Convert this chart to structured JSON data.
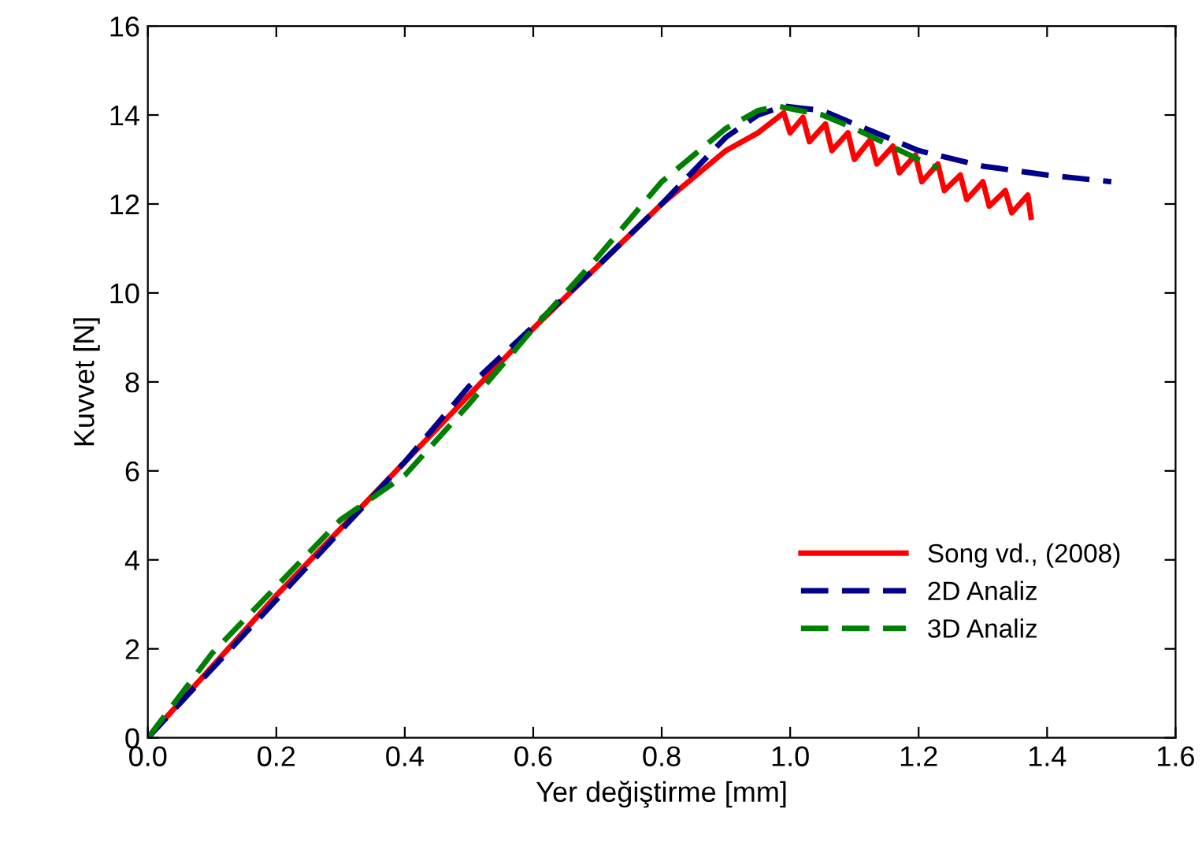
{
  "chart_data": {
    "type": "line",
    "xlabel": "Yer değiştirme [mm]",
    "ylabel": "Kuvvet [N]",
    "xlim": [
      0,
      1.6
    ],
    "ylim": [
      0,
      16
    ],
    "xticks": [
      {
        "value": 0,
        "label": "0.0"
      },
      {
        "value": 0.2,
        "label": "0.2"
      },
      {
        "value": 0.4,
        "label": "0.4"
      },
      {
        "value": 0.6,
        "label": "0.6"
      },
      {
        "value": 0.8,
        "label": "0.8"
      },
      {
        "value": 1.0,
        "label": "1.0"
      },
      {
        "value": 1.2,
        "label": "1.2"
      },
      {
        "value": 1.4,
        "label": "1.4"
      },
      {
        "value": 1.6,
        "label": "1.6"
      }
    ],
    "yticks": [
      0,
      2,
      4,
      6,
      8,
      10,
      12,
      14,
      16
    ],
    "grid": false,
    "legend": "bottom right",
    "marker": "none",
    "series": [
      {
        "name": "Song vd., (2008)",
        "color": "#ff0000",
        "line_style": "solid",
        "x": [
          0,
          0.2,
          0.4,
          0.6,
          0.8,
          0.9,
          0.95,
          0.99,
          1.0,
          1.02,
          1.03,
          1.055,
          1.065,
          1.09,
          1.1,
          1.125,
          1.135,
          1.16,
          1.17,
          1.195,
          1.205,
          1.23,
          1.24,
          1.265,
          1.275,
          1.3,
          1.31,
          1.335,
          1.345,
          1.37,
          1.375
        ],
        "values": [
          0,
          3.2,
          6.2,
          9.2,
          12.0,
          13.2,
          13.6,
          14.05,
          13.6,
          13.95,
          13.4,
          13.8,
          13.2,
          13.6,
          13.0,
          13.45,
          12.9,
          13.3,
          12.7,
          13.1,
          12.5,
          12.9,
          12.3,
          12.65,
          12.1,
          12.5,
          11.95,
          12.3,
          11.8,
          12.2,
          11.7
        ]
      },
      {
        "name": "2D Analiz",
        "color": "#00008b",
        "line_style": "dashed",
        "x": [
          0,
          0.2,
          0.4,
          0.5,
          0.7,
          0.8,
          0.9,
          0.95,
          0.99,
          1.05,
          1.1,
          1.2,
          1.3,
          1.4,
          1.5
        ],
        "values": [
          0,
          3.1,
          6.2,
          7.9,
          10.6,
          12.0,
          13.5,
          14.0,
          14.2,
          14.1,
          13.8,
          13.2,
          12.85,
          12.65,
          12.5
        ]
      },
      {
        "name": "3D Analiz",
        "color": "#008000",
        "line_style": "dashed",
        "x": [
          0,
          0.1,
          0.3,
          0.4,
          0.5,
          0.6,
          0.7,
          0.8,
          0.9,
          0.95,
          0.98,
          1.05,
          1.1,
          1.2,
          1.23
        ],
        "values": [
          0,
          1.9,
          4.9,
          5.9,
          7.5,
          9.2,
          10.8,
          12.5,
          13.7,
          14.1,
          14.2,
          14.0,
          13.7,
          13.0,
          12.8
        ]
      }
    ]
  }
}
